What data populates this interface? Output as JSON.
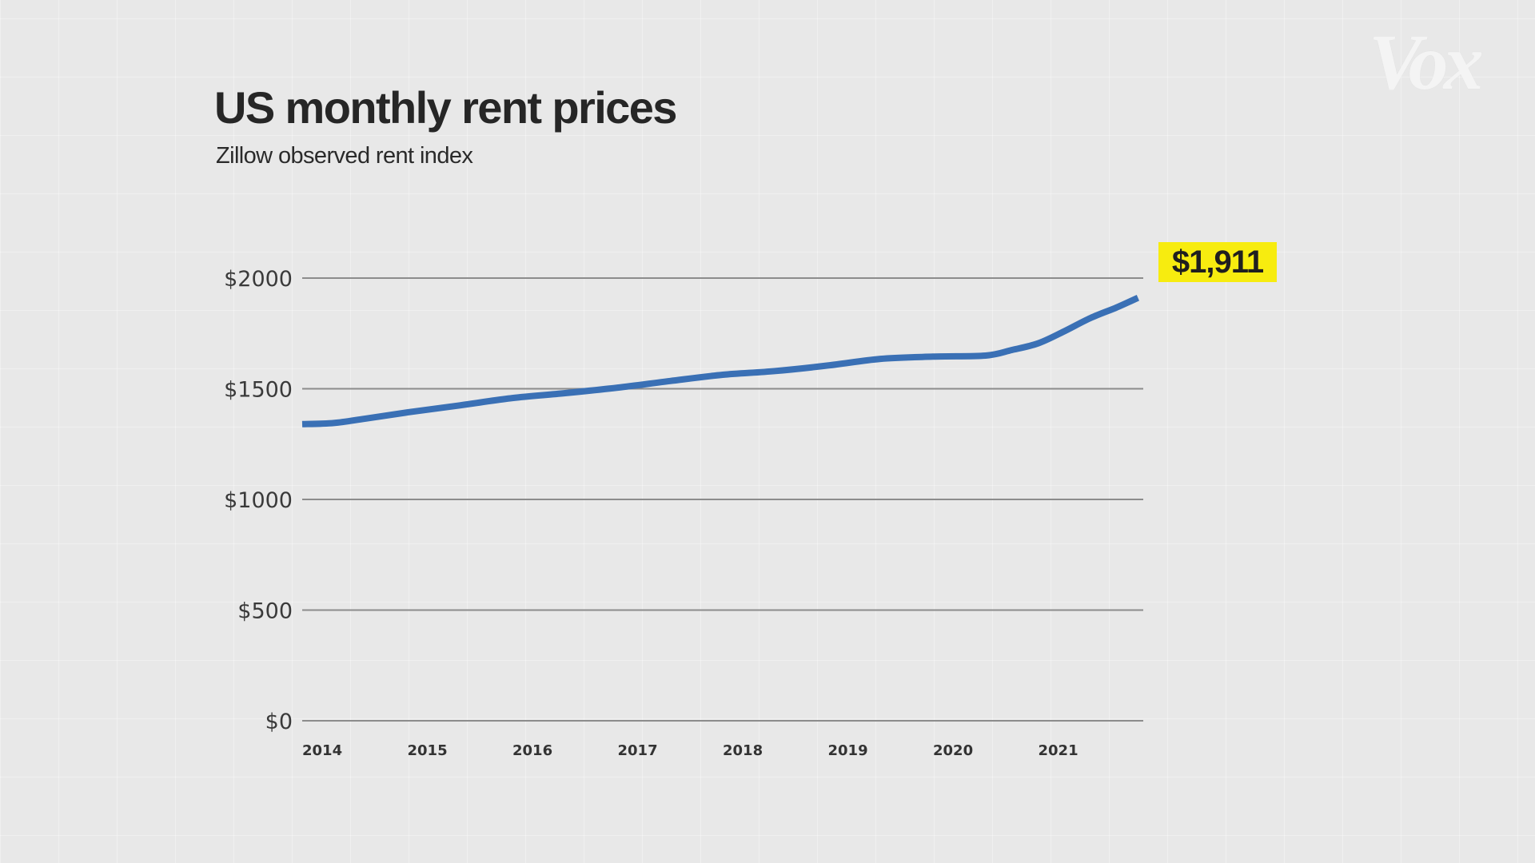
{
  "header": {
    "title": "US monthly rent prices",
    "subtitle": "Zillow observed rent index",
    "logo": "Vox"
  },
  "callout": {
    "label": "$1,911",
    "background": "#f7ec0f"
  },
  "colors": {
    "background": "#e8e8e8",
    "line": "#3a70b5",
    "gridline": "#8c8c8c",
    "text": "#262626"
  },
  "chart_data": {
    "type": "line",
    "title": "US monthly rent prices",
    "subtitle": "Zillow observed rent index",
    "xlabel": "",
    "ylabel": "",
    "xlim": [
      2014.0,
      2021.95
    ],
    "ylim": [
      0,
      2000
    ],
    "grid": "horizontal",
    "legend": "none",
    "y_ticks": [
      {
        "value": 2000,
        "label": "$2000"
      },
      {
        "value": 1500,
        "label": "$1500"
      },
      {
        "value": 1000,
        "label": "$1000"
      },
      {
        "value": 500,
        "label": "$500"
      },
      {
        "value": 0,
        "label": "$0"
      }
    ],
    "x_ticks": [
      {
        "value": 2014,
        "label": "2014"
      },
      {
        "value": 2015,
        "label": "2015"
      },
      {
        "value": 2016,
        "label": "2016"
      },
      {
        "value": 2017,
        "label": "2017"
      },
      {
        "value": 2018,
        "label": "2018"
      },
      {
        "value": 2019,
        "label": "2019"
      },
      {
        "value": 2020,
        "label": "2020"
      },
      {
        "value": 2021,
        "label": "2021"
      }
    ],
    "series": [
      {
        "name": "Zillow observed rent index",
        "x": [
          2014.0,
          2014.3,
          2014.6,
          2015.0,
          2015.5,
          2016.0,
          2016.5,
          2017.0,
          2017.5,
          2018.0,
          2018.5,
          2019.0,
          2019.5,
          2020.0,
          2020.5,
          2020.75,
          2021.0,
          2021.25,
          2021.5,
          2021.75,
          2021.95
        ],
        "values": [
          1340,
          1345,
          1365,
          1393,
          1425,
          1458,
          1480,
          1505,
          1535,
          1563,
          1580,
          1605,
          1635,
          1645,
          1650,
          1675,
          1705,
          1760,
          1820,
          1868,
          1911
        ]
      }
    ],
    "annotations": [
      {
        "x": 2021.95,
        "value": 1911,
        "label": "$1,911"
      }
    ]
  }
}
